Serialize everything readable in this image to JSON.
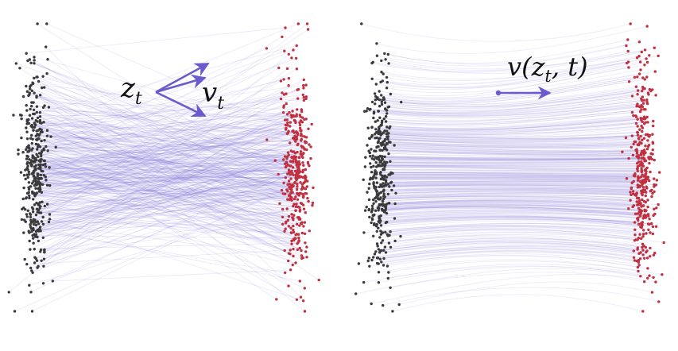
{
  "left_panel": {
    "point_label": "z",
    "point_label_sub": "t",
    "vector_label": "v",
    "vector_label_sub": "t"
  },
  "right_panel": {
    "field_label_prefix": "v(",
    "field_label_z": "z",
    "field_label_sub": "t",
    "field_label_suffix": ", t)"
  },
  "colors": {
    "source_points": "#3a3a3a",
    "target_points": "#c0303f",
    "paths": "#6a5acd",
    "arrows": "#6a5acd",
    "text": "#111111",
    "background": "#ffffff"
  }
}
